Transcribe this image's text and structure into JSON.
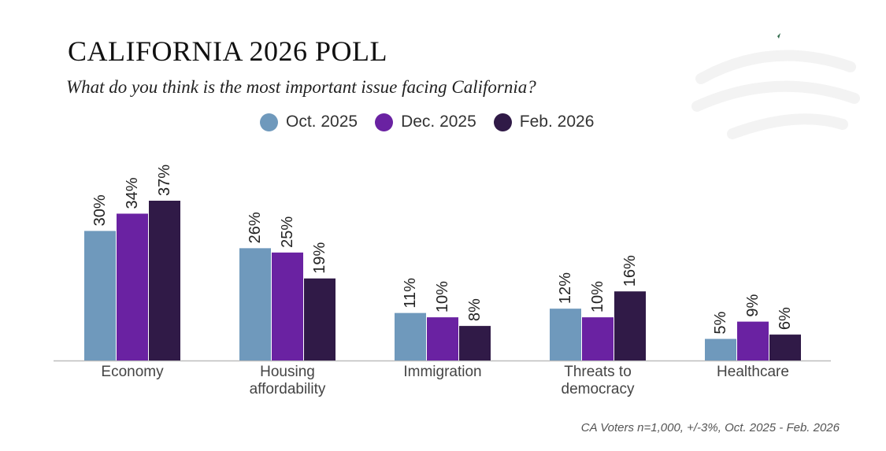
{
  "colors": {
    "oct_2025": "#6f99bc",
    "dec_2025": "#6a22a2",
    "feb_2026": "#301a47",
    "axis": "#bdbdbd",
    "label_text": "#222222",
    "category_text": "#444444"
  },
  "chart_data": {
    "type": "bar",
    "title": "CALIFORNIA 2026 POLL",
    "subtitle": "What do you think is the most important issue facing California?",
    "categories": [
      [
        "Economy"
      ],
      [
        "Housing",
        "affordability"
      ],
      [
        "Immigration"
      ],
      [
        "Threats to",
        "democracy"
      ],
      [
        "Healthcare"
      ]
    ],
    "series": [
      {
        "name": "Oct. 2025",
        "color_key": "oct_2025",
        "values": [
          30,
          26,
          11,
          12,
          5
        ]
      },
      {
        "name": "Dec. 2025",
        "color_key": "dec_2025",
        "values": [
          34,
          25,
          10,
          10,
          9
        ]
      },
      {
        "name": "Feb. 2026",
        "color_key": "feb_2026",
        "values": [
          37,
          19,
          8,
          16,
          6
        ]
      }
    ],
    "value_suffix": "%",
    "ylim": [
      0,
      37
    ],
    "legend_position": "top-center",
    "grid": false,
    "footnote": "CA Voters n=1,000, +/-3%, Oct. 2025 - Feb. 2026"
  }
}
